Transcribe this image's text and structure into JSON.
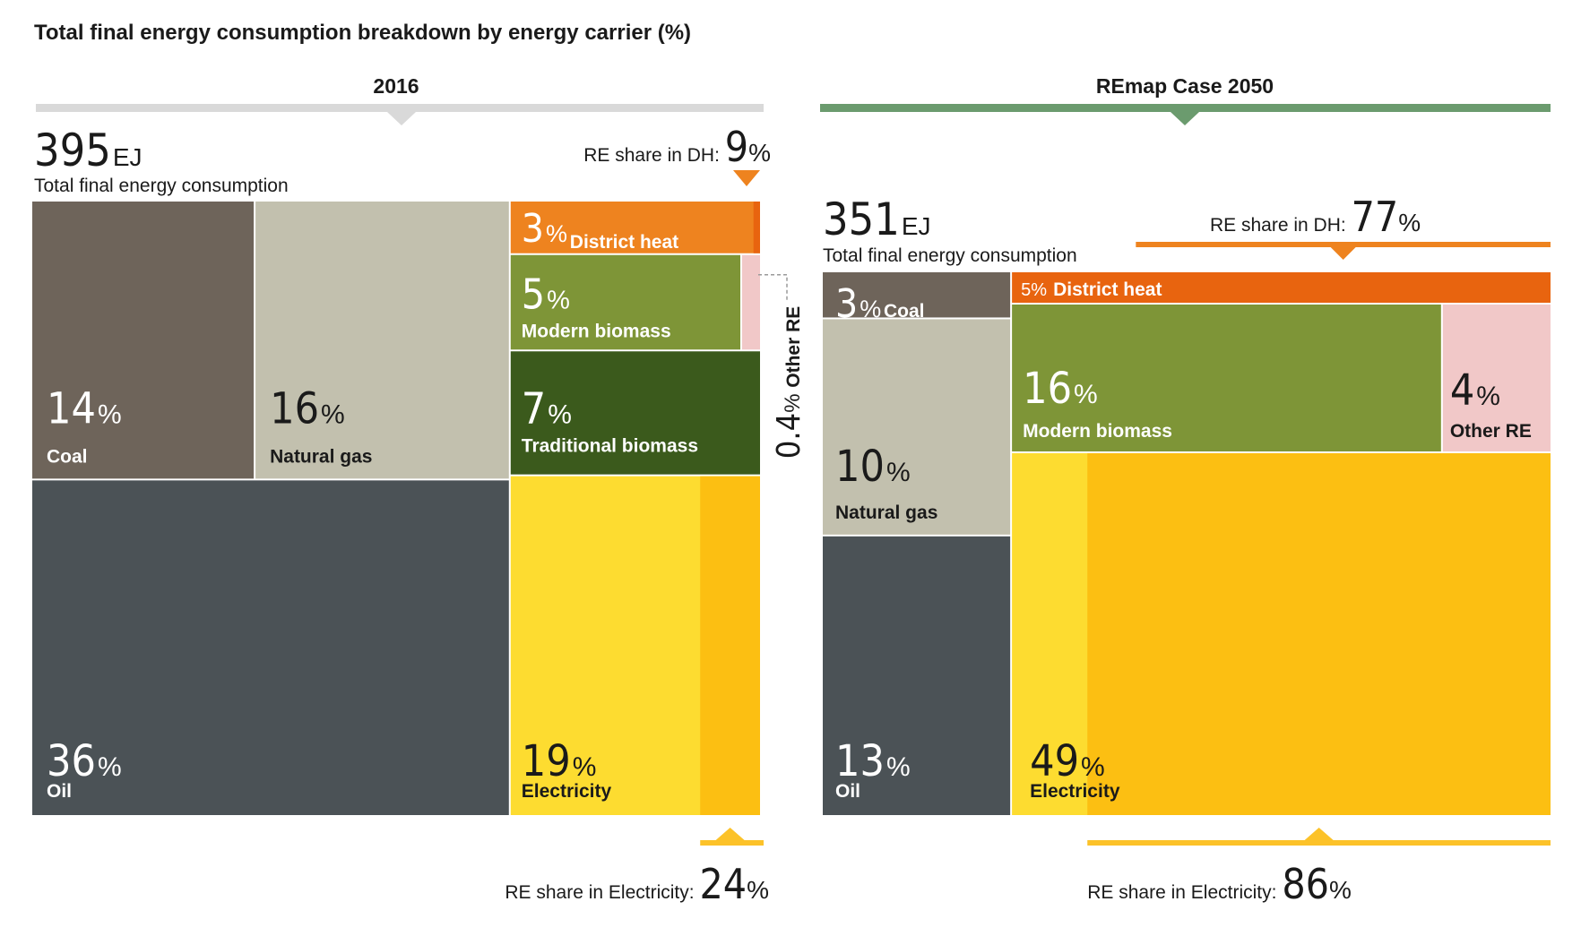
{
  "chart_data": [
    {
      "type": "treemap",
      "title": "2016",
      "total": {
        "value": "395",
        "unit": "EJ",
        "label": "Total final energy consumption"
      },
      "segments": [
        {
          "name": "Coal",
          "value": 14,
          "display": "14",
          "color": "#6e645a"
        },
        {
          "name": "Natural gas",
          "value": 16,
          "display": "16",
          "color": "#c2c0ae"
        },
        {
          "name": "Oil",
          "value": 36,
          "display": "36",
          "color": "#4b5256"
        },
        {
          "name": "District heat",
          "value": 3,
          "display": "3",
          "color": "#ee831f",
          "re_share_percent": 9
        },
        {
          "name": "Modern biomass",
          "value": 5,
          "display": "5",
          "color": "#7e9537"
        },
        {
          "name": "Traditional biomass",
          "value": 7,
          "display": "7",
          "color": "#3b5a1c"
        },
        {
          "name": "Electricity",
          "value": 19,
          "display": "19",
          "color": "#fddc30",
          "re_share_percent": 24
        },
        {
          "name": "Other RE",
          "value": 0.4,
          "display": "0.4",
          "color": "#f1c8c8"
        }
      ],
      "re_share_dh": {
        "label": "RE share in DH:",
        "value": "9"
      },
      "re_share_electricity": {
        "label": "RE share in Electricity:",
        "value": "24"
      }
    },
    {
      "type": "treemap",
      "title": "REmap Case 2050",
      "total": {
        "value": "351",
        "unit": "EJ",
        "label": "Total final energy consumption"
      },
      "segments": [
        {
          "name": "Coal",
          "value": 3,
          "display": "3",
          "color": "#6e645a"
        },
        {
          "name": "Natural gas",
          "value": 10,
          "display": "10",
          "color": "#c2c0ae"
        },
        {
          "name": "Oil",
          "value": 13,
          "display": "13",
          "color": "#4b5256"
        },
        {
          "name": "District heat",
          "value": 5,
          "display": "5",
          "color": "#e8640f",
          "re_share_percent": 77
        },
        {
          "name": "Modern biomass",
          "value": 16,
          "display": "16",
          "color": "#7e9537"
        },
        {
          "name": "Other RE",
          "value": 4,
          "display": "4",
          "color": "#f1c8c8"
        },
        {
          "name": "Electricity",
          "value": 49,
          "display": "49",
          "color": "#fcbf12",
          "re_share_percent": 86
        }
      ],
      "re_share_dh": {
        "label": "RE share in DH:",
        "value": "77"
      },
      "re_share_electricity": {
        "label": "RE share in Electricity:",
        "value": "86"
      }
    }
  ],
  "figure_title": "Total final energy consumption breakdown by energy carrier (%)",
  "percent_sign": "%",
  "colors": {
    "bar_2016": "#d9d9d9",
    "bar_2050": "#6b9b6e",
    "orange_accent": "#ee831f",
    "dh_renewable": "#e8640f",
    "electricity_renewable": "#fcbf12",
    "electricity_yellow_line": "#fcc229",
    "text": "#1a1a1a",
    "white": "#ffffff"
  }
}
